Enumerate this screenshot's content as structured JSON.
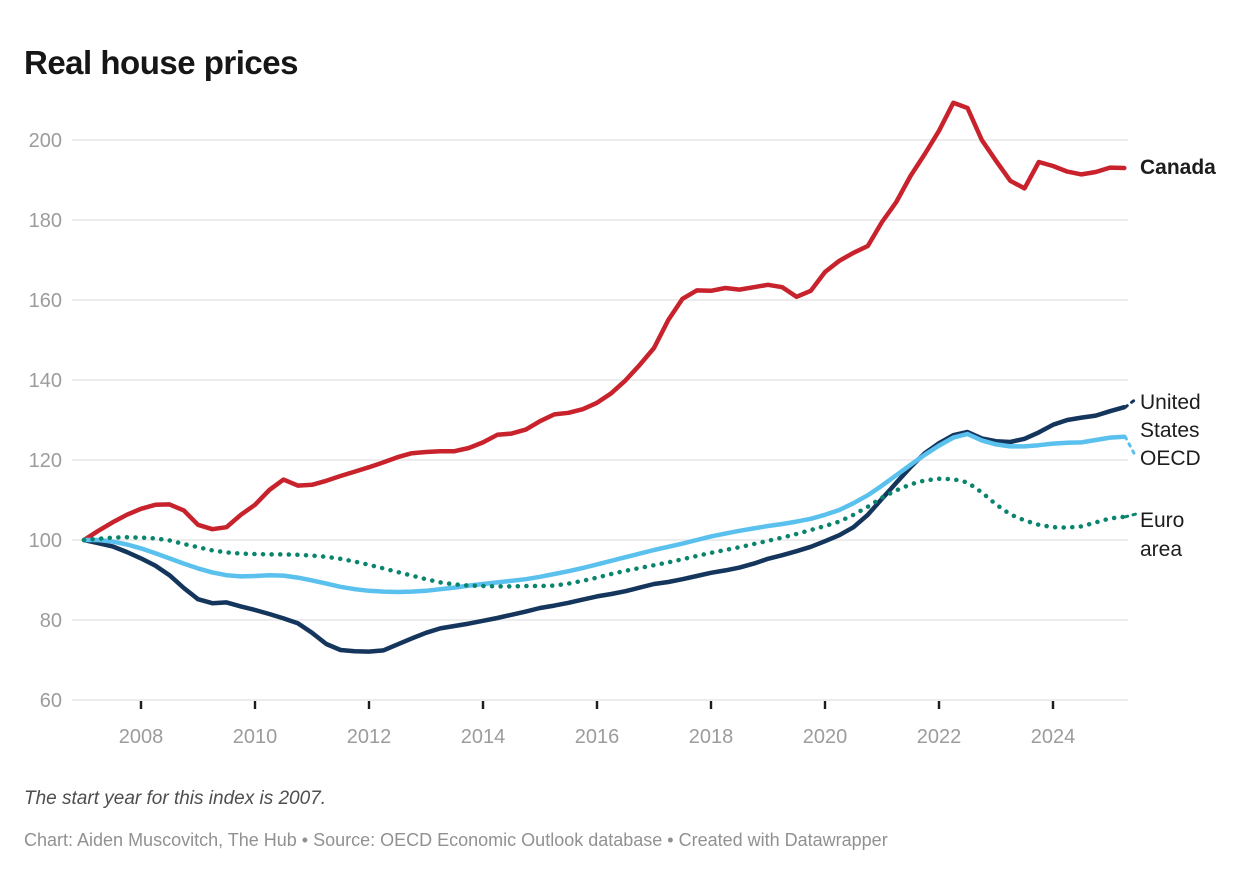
{
  "title": "Real house prices",
  "footnote": "The start year for this index is 2007.",
  "credit": "Chart: Aiden Muscovitch, The Hub • Source: OECD Economic Outlook database • Created with Datawrapper",
  "colors": {
    "canada": "#c8232c",
    "united_states": "#14355c",
    "oecd": "#5ac1ee",
    "euro_area": "#09846d",
    "grid": "#e6e6e6",
    "axis_text": "#9c9c9c",
    "tick": "#1d1d1d",
    "title_text": "#161616"
  },
  "chart_data": {
    "type": "line",
    "title": "Real house prices",
    "xlabel": "",
    "ylabel": "",
    "legend": "direct-labels-at-line-ends",
    "grid": "horizontal",
    "x_unit": "year (quarterly index, 2007 = 100)",
    "x_start": 2007.0,
    "x_step": 0.25,
    "xlim": [
      2007.0,
      2025.3
    ],
    "ylim": [
      60,
      212
    ],
    "x_ticks": [
      2008,
      2010,
      2012,
      2014,
      2016,
      2018,
      2020,
      2022,
      2024
    ],
    "y_ticks": [
      60,
      80,
      100,
      120,
      140,
      160,
      180,
      200
    ],
    "series": [
      {
        "id": "canada",
        "name": "Canada",
        "label_lines": [
          "Canada"
        ],
        "color": "#c8232c",
        "style": "solid",
        "values": [
          100,
          102.3,
          104.4,
          106.3,
          107.8,
          108.8,
          108.9,
          107.4,
          103.8,
          102.7,
          103.2,
          106.3,
          108.8,
          112.5,
          115.1,
          113.6,
          113.8,
          114.8,
          116.0,
          117.1,
          118.2,
          119.4,
          120.7,
          121.7,
          122.0,
          122.2,
          122.2,
          123.0,
          124.4,
          126.3,
          126.6,
          127.6,
          129.7,
          131.4,
          131.8,
          132.7,
          134.3,
          136.7,
          139.9,
          143.8,
          148.0,
          155.0,
          160.3,
          162.4,
          162.3,
          163.0,
          162.6,
          163.2,
          163.8,
          163.2,
          160.8,
          162.3,
          167.0,
          169.8,
          171.8,
          173.5,
          179.5,
          184.5,
          191.0,
          196.5,
          202.3,
          209.3,
          208.0,
          200.0,
          194.8,
          189.8,
          187.9,
          194.5,
          193.5,
          192.1,
          191.4,
          192.0,
          193.1,
          193.0
        ]
      },
      {
        "id": "united-states",
        "name": "United States",
        "label_lines": [
          "United",
          "States"
        ],
        "color": "#14355c",
        "style": "solid",
        "values": [
          100,
          99.2,
          98.4,
          97.0,
          95.4,
          93.6,
          91.2,
          88.0,
          85.2,
          84.2,
          84.4,
          83.4,
          82.5,
          81.5,
          80.4,
          79.2,
          76.8,
          74.0,
          72.5,
          72.2,
          72.1,
          72.4,
          73.9,
          75.4,
          76.8,
          77.9,
          78.5,
          79.1,
          79.8,
          80.5,
          81.3,
          82.1,
          83.0,
          83.6,
          84.3,
          85.1,
          85.9,
          86.5,
          87.2,
          88.1,
          89.0,
          89.5,
          90.2,
          91.0,
          91.8,
          92.4,
          93.1,
          94.1,
          95.3,
          96.2,
          97.2,
          98.3,
          99.7,
          101.2,
          103.2,
          106.3,
          110.3,
          114.3,
          118.2,
          121.7,
          124.2,
          126.2,
          127.0,
          125.4,
          124.7,
          124.5,
          125.3,
          126.9,
          128.8,
          130.0,
          130.6,
          131.1,
          132.2,
          133.2
        ]
      },
      {
        "id": "oecd",
        "name": "OECD",
        "label_lines": [
          "OECD"
        ],
        "color": "#5ac1ee",
        "style": "solid",
        "values": [
          100,
          100.0,
          99.6,
          98.9,
          97.9,
          96.7,
          95.4,
          94.1,
          92.9,
          91.9,
          91.2,
          90.9,
          91.0,
          91.2,
          91.1,
          90.6,
          89.9,
          89.1,
          88.3,
          87.7,
          87.3,
          87.1,
          87.0,
          87.1,
          87.3,
          87.7,
          88.1,
          88.6,
          89.0,
          89.4,
          89.8,
          90.2,
          90.8,
          91.5,
          92.2,
          93.0,
          93.9,
          94.8,
          95.7,
          96.6,
          97.5,
          98.3,
          99.1,
          100.0,
          100.9,
          101.6,
          102.3,
          102.9,
          103.5,
          104.0,
          104.6,
          105.3,
          106.3,
          107.5,
          109.2,
          111.2,
          113.6,
          116.2,
          118.8,
          121.3,
          123.6,
          125.6,
          126.5,
          124.9,
          123.9,
          123.4,
          123.4,
          123.7,
          124.1,
          124.3,
          124.4,
          125.0,
          125.6,
          125.8
        ]
      },
      {
        "id": "euro-area",
        "name": "Euro area",
        "label_lines": [
          "Euro",
          "area"
        ],
        "color": "#09846d",
        "style": "dotted",
        "values": [
          100,
          100.3,
          100.6,
          100.7,
          100.6,
          100.4,
          99.9,
          99.0,
          98.2,
          97.4,
          96.9,
          96.6,
          96.5,
          96.4,
          96.4,
          96.3,
          96.1,
          95.8,
          95.3,
          94.6,
          93.8,
          92.9,
          92.0,
          91.1,
          90.2,
          89.4,
          88.9,
          88.6,
          88.5,
          88.4,
          88.4,
          88.5,
          88.5,
          88.6,
          89.1,
          89.8,
          90.6,
          91.5,
          92.3,
          93.0,
          93.7,
          94.4,
          95.2,
          96.0,
          96.8,
          97.5,
          98.2,
          99.0,
          99.8,
          100.6,
          101.5,
          102.5,
          103.5,
          104.6,
          106.3,
          108.3,
          110.6,
          112.4,
          113.9,
          114.9,
          115.3,
          115.2,
          114.4,
          111.9,
          108.9,
          106.4,
          104.9,
          103.8,
          103.2,
          103.1,
          103.4,
          104.4,
          105.4,
          105.8
        ]
      }
    ]
  }
}
